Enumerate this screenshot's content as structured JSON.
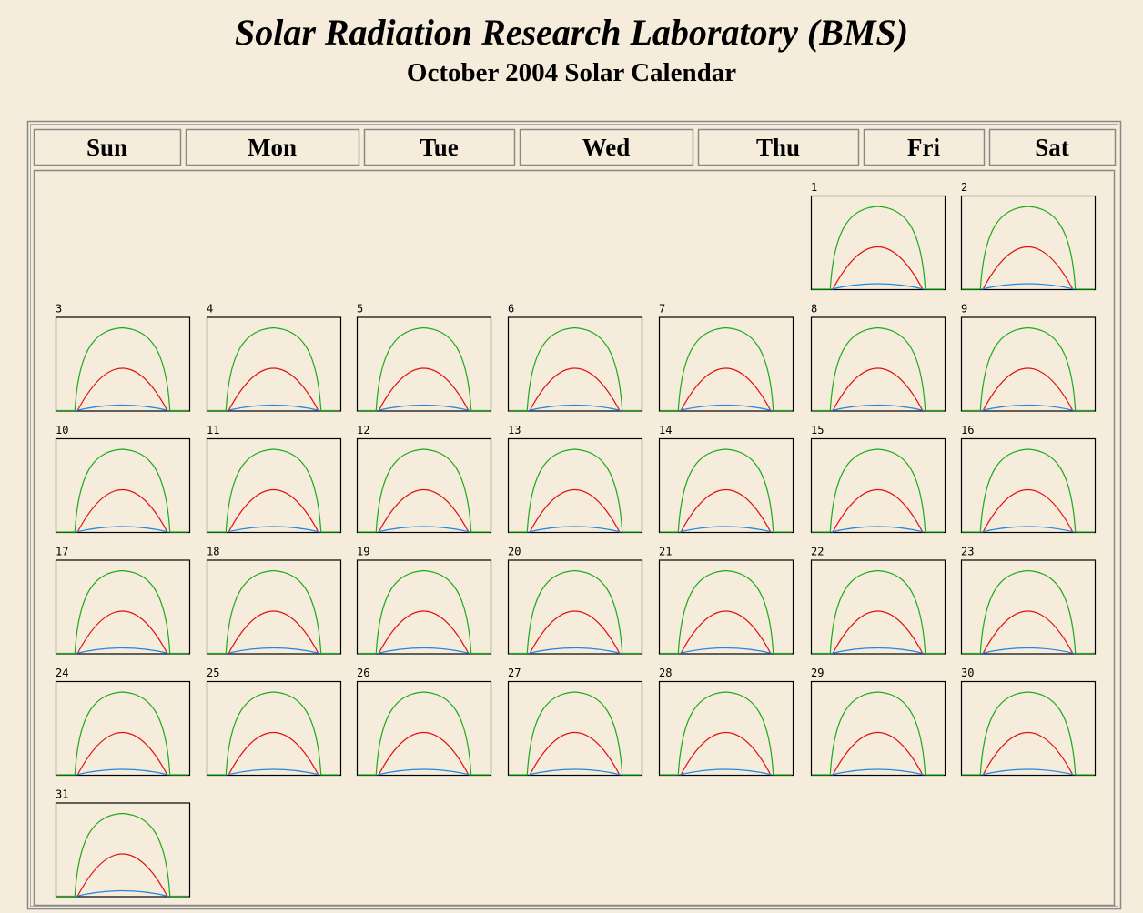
{
  "header": {
    "title": "Solar Radiation Research Laboratory (BMS)",
    "subtitle": "October 2004 Solar Calendar"
  },
  "weekdays": [
    "Sun",
    "Mon",
    "Tue",
    "Wed",
    "Thu",
    "Fri",
    "Sat"
  ],
  "days": [
    "1",
    "2",
    "3",
    "4",
    "5",
    "6",
    "7",
    "8",
    "9",
    "10",
    "11",
    "12",
    "13",
    "14",
    "15",
    "16",
    "17",
    "18",
    "19",
    "20",
    "21",
    "22",
    "23",
    "24",
    "25",
    "26",
    "27",
    "28",
    "29",
    "30",
    "31"
  ]
}
